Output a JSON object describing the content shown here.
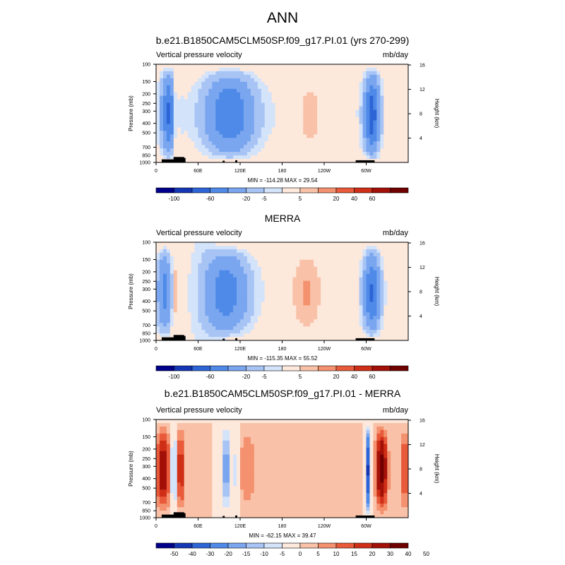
{
  "figure": {
    "title": "ANN"
  },
  "colors": {
    "panel12": [
      "#00008b",
      "#1537b5",
      "#2e65d6",
      "#4f8ae8",
      "#7aa6f0",
      "#a7c4f5",
      "#d3e3fa",
      "#fde8dc",
      "#f9c2a8",
      "#f4916f",
      "#e85a3a",
      "#cf2f17",
      "#a31008",
      "#700000"
    ],
    "panel3": [
      "#00008b",
      "#1537b5",
      "#2e65d6",
      "#4f8ae8",
      "#7aa6f0",
      "#a7c4f5",
      "#d3e3fa",
      "#fde8dc",
      "#f9c2a8",
      "#f4916f",
      "#e85a3a",
      "#cf2f17",
      "#a31008",
      "#700000"
    ]
  },
  "chart_data": [
    {
      "type": "heatmap",
      "title": "b.e21.B1850CAM5CLM50SP.f09_g17.PI.01 (yrs 270-299)",
      "left_label": "Vertical pressure velocity",
      "units": "mb/day",
      "ylabel": "Pressure (mb)",
      "y2label": "Height (km)",
      "xticks": [
        "0",
        "60E",
        "120E",
        "180",
        "120W",
        "60W"
      ],
      "yticks": [
        "100",
        "150",
        "200",
        "250",
        "300",
        "400",
        "500",
        "700",
        "850",
        "1000"
      ],
      "y2ticks": [
        "4",
        "8",
        "12",
        "16"
      ],
      "stats": "MIN = -114.28   MAX =  29.54",
      "colorbar_labels": [
        "-100",
        "-60",
        "-20",
        "-5",
        "5",
        "20",
        "40",
        "60"
      ],
      "colorbar_label_index": [
        1,
        3,
        5,
        6,
        8,
        10,
        11,
        12
      ]
    },
    {
      "type": "heatmap",
      "title": "MERRA",
      "left_label": "Vertical pressure velocity",
      "units": "mb/day",
      "ylabel": "Pressure (mb)",
      "y2label": "Height (km)",
      "xticks": [
        "0",
        "60E",
        "120E",
        "180",
        "120W",
        "60W"
      ],
      "yticks": [
        "100",
        "150",
        "200",
        "250",
        "300",
        "400",
        "500",
        "700",
        "850",
        "1000"
      ],
      "y2ticks": [
        "4",
        "8",
        "12",
        "16"
      ],
      "stats": "MIN = -115.35   MAX =  55.52",
      "colorbar_labels": [
        "-100",
        "-60",
        "-20",
        "-5",
        "5",
        "20",
        "40",
        "60"
      ],
      "colorbar_label_index": [
        1,
        3,
        5,
        6,
        8,
        10,
        11,
        12
      ]
    },
    {
      "type": "heatmap",
      "title": "b.e21.B1850CAM5CLM50SP.f09_g17.PI.01 - MERRA",
      "left_label": "Vertical pressure velocity",
      "units": "mb/day",
      "ylabel": "Pressure (mb)",
      "y2label": "Height (km)",
      "xticks": [
        "0",
        "60E",
        "120E",
        "180",
        "120W",
        "60W"
      ],
      "yticks": [
        "100",
        "150",
        "200",
        "250",
        "300",
        "400",
        "500",
        "700",
        "850",
        "1000"
      ],
      "y2ticks": [
        "4",
        "8",
        "12",
        "16"
      ],
      "stats": "MIN = -62.15   MAX =  39.47",
      "colorbar_labels": [
        "-50",
        "-40",
        "-30",
        "-20",
        "-15",
        "-10",
        "-5",
        "0",
        "5",
        "10",
        "15",
        "20",
        "30",
        "40",
        "50"
      ],
      "colorbar_label_index": [
        1,
        2,
        3,
        4,
        5,
        6,
        7,
        8,
        9,
        10,
        11,
        12,
        13,
        14,
        15
      ]
    }
  ]
}
